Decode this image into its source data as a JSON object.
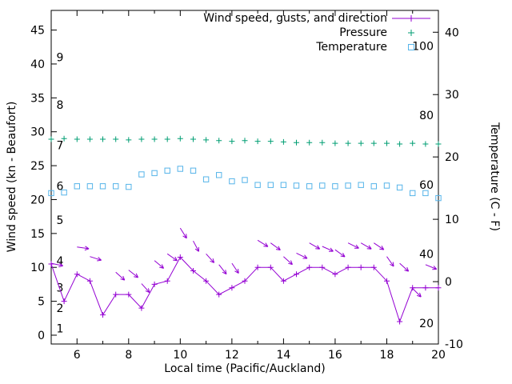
{
  "chart_data": {
    "type": "line",
    "title": "",
    "xlabel": "Local time (Pacific/Auckland)",
    "ylabel_left": "Wind speed (kn - Beaufort)",
    "ylabel_right": "Temperature (C - F)",
    "x_range": [
      5,
      20
    ],
    "x_ticks_major": [
      6,
      8,
      10,
      12,
      14,
      16,
      18,
      20
    ],
    "x_ticks_minor": [
      7,
      9,
      11,
      13,
      15,
      17,
      19
    ],
    "y_left_ticks": [
      0,
      5,
      10,
      15,
      20,
      25,
      30,
      35,
      40,
      45
    ],
    "y_left_range": [
      -1.3,
      47.9
    ],
    "y_right_ticks": [
      -10,
      0,
      10,
      20,
      30,
      40
    ],
    "y_right_range": [
      -10,
      43.5
    ],
    "grid": false,
    "legend_position": "top-right-inside",
    "colors": {
      "wind": "#9400d3",
      "pressure": "#009e73",
      "temperature": "#56b4e9",
      "axis": "#000000"
    },
    "legend": [
      {
        "label": "Wind speed, gusts, and direction",
        "series": "wind_speed_kn",
        "marker": "line-plus"
      },
      {
        "label": "Pressure",
        "series": "pressure",
        "marker": "plus"
      },
      {
        "label": "Temperature",
        "series": "temperature_c",
        "marker": "open-square"
      }
    ],
    "beaufort_labels": [
      {
        "label": "1",
        "kn": 1
      },
      {
        "label": "2",
        "kn": 4
      },
      {
        "label": "3",
        "kn": 7
      },
      {
        "label": "4",
        "kn": 11
      },
      {
        "label": "5",
        "kn": 17
      },
      {
        "label": "6",
        "kn": 22
      },
      {
        "label": "7",
        "kn": 28
      },
      {
        "label": "8",
        "kn": 34
      },
      {
        "label": "9",
        "kn": 41
      }
    ],
    "fahrenheit_labels": [
      {
        "label": "20",
        "f": 20
      },
      {
        "label": "40",
        "f": 40
      },
      {
        "label": "60",
        "f": 60
      },
      {
        "label": "80",
        "f": 80
      },
      {
        "label": "100",
        "f": 100
      }
    ],
    "x": [
      5,
      5.5,
      6,
      6.5,
      7,
      7.5,
      8,
      8.5,
      9,
      9.5,
      10,
      10.5,
      11,
      11.5,
      12,
      12.5,
      13,
      13.5,
      14,
      14.5,
      15,
      15.5,
      16,
      16.5,
      17,
      17.5,
      18,
      18.5,
      19,
      19.5,
      20
    ],
    "series": [
      {
        "name": "wind_speed_kn",
        "axis": "left",
        "style": "line-plus",
        "values": [
          10.5,
          5,
          9,
          8,
          3,
          6,
          6,
          4,
          7.5,
          8,
          11.5,
          9.5,
          8,
          6,
          7,
          8,
          10,
          10,
          8,
          9,
          10,
          10,
          9,
          10,
          10,
          10,
          8,
          2,
          7,
          7,
          7
        ]
      },
      {
        "name": "pressure",
        "axis": "left",
        "style": "plus",
        "values": [
          28.9,
          29,
          28.9,
          28.9,
          28.9,
          28.9,
          28.8,
          28.9,
          28.9,
          28.9,
          29,
          28.9,
          28.8,
          28.7,
          28.6,
          28.7,
          28.6,
          28.6,
          28.5,
          28.4,
          28.4,
          28.4,
          28.3,
          28.3,
          28.3,
          28.3,
          28.3,
          28.2,
          28.3,
          28.2,
          28.2
        ]
      },
      {
        "name": "temperature_c",
        "axis": "right",
        "style": "open-square",
        "values": [
          14.2,
          14.3,
          15.3,
          15.3,
          15.3,
          15.3,
          15.2,
          17.2,
          17.4,
          17.8,
          18.1,
          17.8,
          16.4,
          17.1,
          16.1,
          16.3,
          15.5,
          15.5,
          15.5,
          15.4,
          15.3,
          15.4,
          15.3,
          15.4,
          15.5,
          15.3,
          15.4,
          15.1,
          14.2,
          14.2,
          13.4
        ]
      }
    ],
    "gusts": [
      {
        "x": 5.0,
        "kn": 10.6,
        "angle_deg": 12
      },
      {
        "x": 6.0,
        "kn": 13.0,
        "angle_deg": 8
      },
      {
        "x": 6.5,
        "kn": 11.6,
        "angle_deg": 18
      },
      {
        "x": 7.5,
        "kn": 9.3,
        "angle_deg": 42
      },
      {
        "x": 8.0,
        "kn": 9.6,
        "angle_deg": 38
      },
      {
        "x": 8.5,
        "kn": 7.6,
        "angle_deg": 48
      },
      {
        "x": 9.0,
        "kn": 11.0,
        "angle_deg": 40
      },
      {
        "x": 9.5,
        "kn": 12.0,
        "angle_deg": 35
      },
      {
        "x": 10.0,
        "kn": 15.8,
        "angle_deg": 58
      },
      {
        "x": 10.5,
        "kn": 13.9,
        "angle_deg": 62
      },
      {
        "x": 11.0,
        "kn": 12.0,
        "angle_deg": 48
      },
      {
        "x": 11.5,
        "kn": 10.4,
        "angle_deg": 52
      },
      {
        "x": 12.0,
        "kn": 10.6,
        "angle_deg": 56
      },
      {
        "x": 13.0,
        "kn": 14.0,
        "angle_deg": 32
      },
      {
        "x": 13.5,
        "kn": 13.6,
        "angle_deg": 36
      },
      {
        "x": 14.0,
        "kn": 11.6,
        "angle_deg": 42
      },
      {
        "x": 14.5,
        "kn": 12.1,
        "angle_deg": 26
      },
      {
        "x": 15.0,
        "kn": 13.6,
        "angle_deg": 30
      },
      {
        "x": 15.5,
        "kn": 13.1,
        "angle_deg": 24
      },
      {
        "x": 16.0,
        "kn": 12.6,
        "angle_deg": 36
      },
      {
        "x": 16.5,
        "kn": 13.6,
        "angle_deg": 26
      },
      {
        "x": 17.0,
        "kn": 13.6,
        "angle_deg": 30
      },
      {
        "x": 17.5,
        "kn": 13.6,
        "angle_deg": 34
      },
      {
        "x": 18.0,
        "kn": 11.6,
        "angle_deg": 55
      },
      {
        "x": 18.5,
        "kn": 10.6,
        "angle_deg": 42
      },
      {
        "x": 19.0,
        "kn": 6.9,
        "angle_deg": 45
      },
      {
        "x": 19.5,
        "kn": 10.4,
        "angle_deg": 22
      }
    ]
  }
}
